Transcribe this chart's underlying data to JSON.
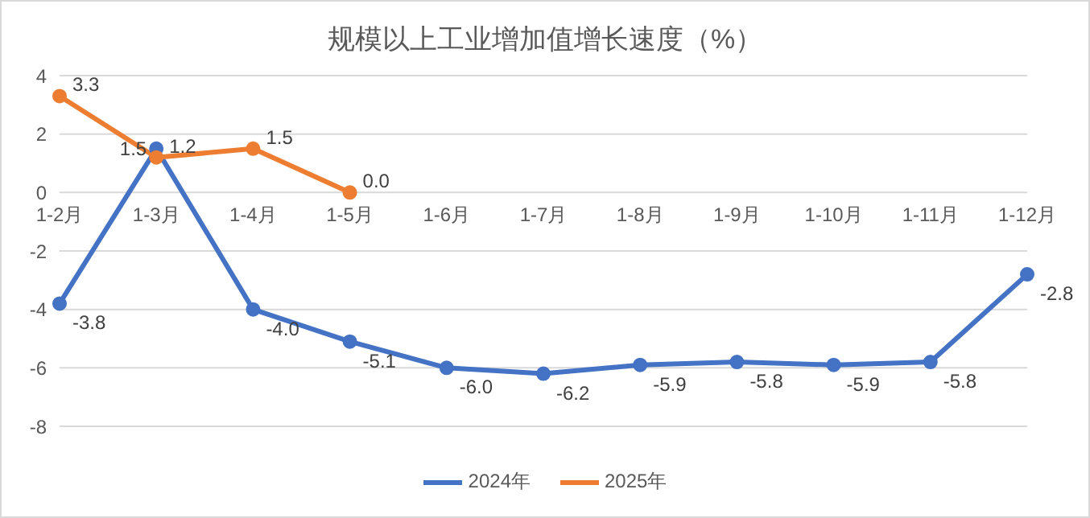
{
  "chart_data": {
    "type": "line",
    "title": "规模以上工业增加值增长速度（%）",
    "categories": [
      "1-2月",
      "1-3月",
      "1-4月",
      "1-5月",
      "1-6月",
      "1-7月",
      "1-8月",
      "1-9月",
      "1-10月",
      "1-11月",
      "1-12月"
    ],
    "series": [
      {
        "name": "2024年",
        "color": "#4472c4",
        "values": [
          -3.8,
          1.5,
          -4.0,
          -5.1,
          -6.0,
          -6.2,
          -5.9,
          -5.8,
          -5.9,
          -5.8,
          -2.8
        ],
        "value_labels": [
          "-3.8",
          "1.5",
          "-4.0",
          "-5.1",
          "-6.0",
          "-6.2",
          "-5.9",
          "-5.8",
          "-5.9",
          "-5.8",
          "-2.8"
        ]
      },
      {
        "name": "2025年",
        "color": "#ed7d31",
        "values": [
          3.3,
          1.2,
          1.5,
          0.0,
          null,
          null,
          null,
          null,
          null,
          null,
          null
        ],
        "value_labels": [
          "3.3",
          "1.2",
          "1.5",
          "0.0",
          null,
          null,
          null,
          null,
          null,
          null,
          null
        ]
      }
    ],
    "ylim": [
      -8,
      4
    ],
    "yticks": [
      -8,
      -6,
      -4,
      -2,
      0,
      2,
      4
    ],
    "grid": "y",
    "legend": "bottom",
    "marker": "circle",
    "line_style": "solid"
  }
}
